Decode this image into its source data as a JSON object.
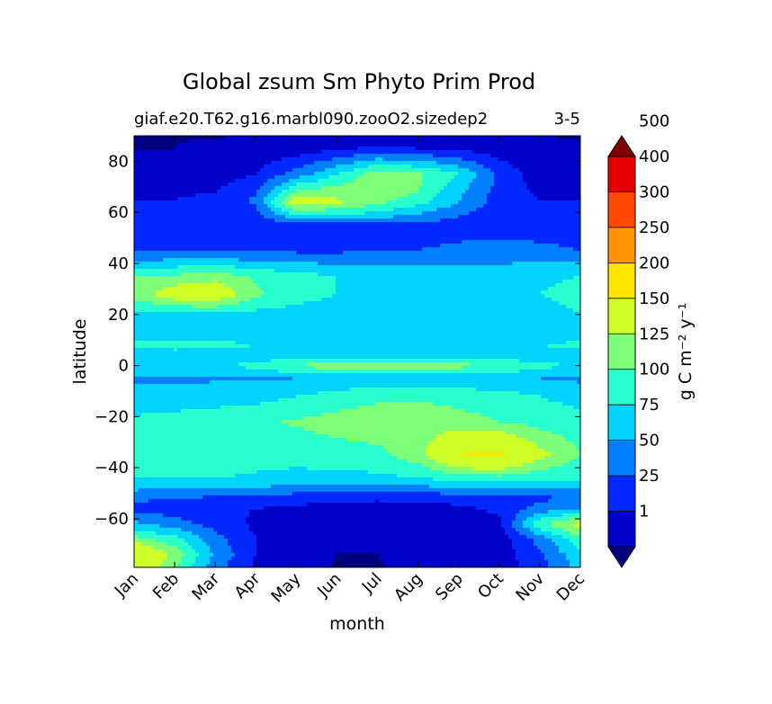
{
  "chart_data": {
    "type": "filled-contour",
    "title": "Global zsum Sm Phyto Prim Prod",
    "subtitle_left": "giaf.e20.T62.g16.marbl090.zooO2.sizedep2",
    "subtitle_right": "3-5",
    "xlabel": "month",
    "ylabel": "latitude",
    "x_categories": [
      "Jan",
      "Feb",
      "Mar",
      "Apr",
      "May",
      "Jun",
      "Jul",
      "Aug",
      "Sep",
      "Oct",
      "Nov",
      "Dec"
    ],
    "ylim": [
      -79,
      90
    ],
    "y_ticks": [
      -60,
      -40,
      -20,
      0,
      20,
      40,
      60,
      80
    ],
    "y_tick_labels": [
      "−60",
      "−40",
      "−20",
      "0",
      "20",
      "40",
      "60",
      "80"
    ],
    "colorbar": {
      "label": "g C m⁻² y⁻¹",
      "extend": "both",
      "levels": [
        1,
        25,
        50,
        75,
        100,
        125,
        150,
        200,
        250,
        300,
        400,
        500
      ],
      "level_labels": [
        "1",
        "25",
        "50",
        "75",
        "100",
        "125",
        "150",
        "200",
        "250",
        "300",
        "400",
        "500"
      ],
      "colors": [
        "#000080",
        "#0000c8",
        "#0028ff",
        "#0080ff",
        "#00d4ff",
        "#29ffce",
        "#7dff7a",
        "#ceff29",
        "#ffe600",
        "#ff9400",
        "#ff4800",
        "#e50000",
        "#800000"
      ]
    },
    "field": {
      "months": [
        1,
        2,
        3,
        4,
        5,
        6,
        7,
        8,
        9,
        10,
        11,
        12
      ],
      "lat_profile_by_month": [
        [
          [
            90,
            0
          ],
          [
            85,
            1
          ],
          [
            75,
            10
          ],
          [
            65,
            25
          ],
          [
            55,
            30
          ],
          [
            45,
            45
          ],
          [
            35,
            125
          ],
          [
            28,
            135
          ],
          [
            20,
            92
          ],
          [
            12,
            82
          ],
          [
            8,
            110
          ],
          [
            4,
            80
          ],
          [
            0,
            90
          ],
          [
            -5,
            70
          ],
          [
            -12,
            85
          ],
          [
            -22,
            105
          ],
          [
            -35,
            115
          ],
          [
            -45,
            98
          ],
          [
            -52,
            55
          ],
          [
            -56,
            40
          ],
          [
            -62,
            80
          ],
          [
            -68,
            135
          ],
          [
            -74,
            200
          ],
          [
            -79,
            180
          ]
        ],
        [
          [
            90,
            0
          ],
          [
            85,
            1
          ],
          [
            75,
            10
          ],
          [
            65,
            25
          ],
          [
            55,
            30
          ],
          [
            45,
            45
          ],
          [
            35,
            130
          ],
          [
            28,
            170
          ],
          [
            20,
            95
          ],
          [
            12,
            85
          ],
          [
            8,
            115
          ],
          [
            4,
            82
          ],
          [
            0,
            90
          ],
          [
            -5,
            70
          ],
          [
            -12,
            85
          ],
          [
            -22,
            110
          ],
          [
            -35,
            118
          ],
          [
            -45,
            98
          ],
          [
            -52,
            50
          ],
          [
            -56,
            38
          ],
          [
            -62,
            60
          ],
          [
            -68,
            110
          ],
          [
            -74,
            140
          ],
          [
            -79,
            130
          ]
        ],
        [
          [
            90,
            0
          ],
          [
            85,
            5
          ],
          [
            75,
            14
          ],
          [
            65,
            30
          ],
          [
            55,
            32
          ],
          [
            45,
            45
          ],
          [
            35,
            140
          ],
          [
            28,
            175
          ],
          [
            20,
            95
          ],
          [
            12,
            85
          ],
          [
            8,
            110
          ],
          [
            4,
            82
          ],
          [
            0,
            95
          ],
          [
            -5,
            72
          ],
          [
            -12,
            88
          ],
          [
            -22,
            115
          ],
          [
            -35,
            118
          ],
          [
            -45,
            98
          ],
          [
            -52,
            45
          ],
          [
            -56,
            30
          ],
          [
            -62,
            40
          ],
          [
            -68,
            60
          ],
          [
            -74,
            70
          ],
          [
            -79,
            60
          ]
        ],
        [
          [
            90,
            1
          ],
          [
            85,
            10
          ],
          [
            75,
            25
          ],
          [
            65,
            55
          ],
          [
            55,
            35
          ],
          [
            45,
            45
          ],
          [
            35,
            120
          ],
          [
            28,
            130
          ],
          [
            20,
            92
          ],
          [
            12,
            85
          ],
          [
            8,
            100
          ],
          [
            4,
            82
          ],
          [
            0,
            110
          ],
          [
            -5,
            72
          ],
          [
            -12,
            90
          ],
          [
            -22,
            120
          ],
          [
            -35,
            110
          ],
          [
            -45,
            95
          ],
          [
            -52,
            40
          ],
          [
            -56,
            25
          ],
          [
            -62,
            20
          ],
          [
            -68,
            25
          ],
          [
            -74,
            25
          ],
          [
            -79,
            20
          ]
        ],
        [
          [
            90,
            1
          ],
          [
            85,
            10
          ],
          [
            75,
            60
          ],
          [
            68,
            130
          ],
          [
            64,
            170
          ],
          [
            60,
            115
          ],
          [
            55,
            35
          ],
          [
            45,
            45
          ],
          [
            35,
            110
          ],
          [
            28,
            110
          ],
          [
            20,
            90
          ],
          [
            12,
            85
          ],
          [
            8,
            95
          ],
          [
            4,
            82
          ],
          [
            0,
            130
          ],
          [
            -5,
            75
          ],
          [
            -12,
            100
          ],
          [
            -22,
            128
          ],
          [
            -35,
            110
          ],
          [
            -45,
            90
          ],
          [
            -52,
            35
          ],
          [
            -56,
            20
          ],
          [
            -62,
            15
          ],
          [
            -68,
            12
          ],
          [
            -74,
            8
          ],
          [
            -79,
            5
          ]
        ],
        [
          [
            90,
            1
          ],
          [
            85,
            20
          ],
          [
            75,
            100
          ],
          [
            68,
            140
          ],
          [
            64,
            155
          ],
          [
            60,
            110
          ],
          [
            55,
            35
          ],
          [
            45,
            45
          ],
          [
            35,
            100
          ],
          [
            28,
            100
          ],
          [
            20,
            88
          ],
          [
            12,
            85
          ],
          [
            8,
            92
          ],
          [
            4,
            82
          ],
          [
            0,
            140
          ],
          [
            -5,
            78
          ],
          [
            -12,
            110
          ],
          [
            -22,
            135
          ],
          [
            -35,
            115
          ],
          [
            -45,
            90
          ],
          [
            -52,
            30
          ],
          [
            -56,
            15
          ],
          [
            -62,
            8
          ],
          [
            -68,
            5
          ],
          [
            -74,
            1
          ],
          [
            -79,
            0
          ]
        ],
        [
          [
            90,
            1
          ],
          [
            85,
            30
          ],
          [
            75,
            140
          ],
          [
            68,
            145
          ],
          [
            64,
            130
          ],
          [
            60,
            100
          ],
          [
            55,
            40
          ],
          [
            45,
            50
          ],
          [
            35,
            95
          ],
          [
            28,
            95
          ],
          [
            20,
            88
          ],
          [
            12,
            85
          ],
          [
            8,
            92
          ],
          [
            4,
            82
          ],
          [
            0,
            145
          ],
          [
            -5,
            80
          ],
          [
            -12,
            120
          ],
          [
            -22,
            140
          ],
          [
            -35,
            118
          ],
          [
            -45,
            92
          ],
          [
            -52,
            28
          ],
          [
            -56,
            15
          ],
          [
            -62,
            8
          ],
          [
            -68,
            5
          ],
          [
            -74,
            1
          ],
          [
            -79,
            0
          ]
        ],
        [
          [
            90,
            1
          ],
          [
            85,
            25
          ],
          [
            75,
            130
          ],
          [
            68,
            125
          ],
          [
            64,
            110
          ],
          [
            60,
            80
          ],
          [
            55,
            40
          ],
          [
            45,
            50
          ],
          [
            35,
            90
          ],
          [
            28,
            90
          ],
          [
            20,
            88
          ],
          [
            12,
            85
          ],
          [
            8,
            92
          ],
          [
            4,
            82
          ],
          [
            0,
            140
          ],
          [
            -5,
            80
          ],
          [
            -12,
            122
          ],
          [
            -22,
            140
          ],
          [
            -35,
            140
          ],
          [
            -45,
            95
          ],
          [
            -52,
            30
          ],
          [
            -56,
            15
          ],
          [
            -62,
            10
          ],
          [
            -68,
            8
          ],
          [
            -74,
            5
          ],
          [
            -79,
            5
          ]
        ],
        [
          [
            90,
            1
          ],
          [
            85,
            20
          ],
          [
            75,
            100
          ],
          [
            68,
            80
          ],
          [
            64,
            75
          ],
          [
            60,
            55
          ],
          [
            55,
            40
          ],
          [
            45,
            55
          ],
          [
            35,
            88
          ],
          [
            28,
            88
          ],
          [
            20,
            88
          ],
          [
            12,
            85
          ],
          [
            8,
            92
          ],
          [
            4,
            82
          ],
          [
            0,
            135
          ],
          [
            -5,
            80
          ],
          [
            -12,
            115
          ],
          [
            -22,
            135
          ],
          [
            -35,
            200
          ],
          [
            -45,
            100
          ],
          [
            -52,
            35
          ],
          [
            -56,
            20
          ],
          [
            -62,
            12
          ],
          [
            -68,
            8
          ],
          [
            -74,
            8
          ],
          [
            -79,
            8
          ]
        ],
        [
          [
            90,
            1
          ],
          [
            85,
            10
          ],
          [
            75,
            45
          ],
          [
            68,
            40
          ],
          [
            64,
            38
          ],
          [
            60,
            35
          ],
          [
            55,
            38
          ],
          [
            45,
            60
          ],
          [
            35,
            88
          ],
          [
            28,
            90
          ],
          [
            20,
            88
          ],
          [
            12,
            85
          ],
          [
            8,
            92
          ],
          [
            4,
            82
          ],
          [
            0,
            125
          ],
          [
            -5,
            80
          ],
          [
            -12,
            110
          ],
          [
            -22,
            125
          ],
          [
            -35,
            210
          ],
          [
            -45,
            105
          ],
          [
            -52,
            40
          ],
          [
            -56,
            30
          ],
          [
            -62,
            18
          ],
          [
            -68,
            10
          ],
          [
            -74,
            10
          ],
          [
            -79,
            10
          ]
        ],
        [
          [
            90,
            1
          ],
          [
            85,
            4
          ],
          [
            75,
            10
          ],
          [
            65,
            25
          ],
          [
            55,
            30
          ],
          [
            45,
            60
          ],
          [
            35,
            95
          ],
          [
            28,
            100
          ],
          [
            20,
            90
          ],
          [
            12,
            82
          ],
          [
            8,
            100
          ],
          [
            4,
            82
          ],
          [
            0,
            110
          ],
          [
            -5,
            75
          ],
          [
            -12,
            100
          ],
          [
            -22,
            115
          ],
          [
            -35,
            160
          ],
          [
            -45,
            100
          ],
          [
            -52,
            45
          ],
          [
            -56,
            60
          ],
          [
            -62,
            120
          ],
          [
            -68,
            60
          ],
          [
            -74,
            45
          ],
          [
            -79,
            40
          ]
        ],
        [
          [
            90,
            0
          ],
          [
            85,
            2
          ],
          [
            75,
            8
          ],
          [
            65,
            25
          ],
          [
            55,
            30
          ],
          [
            45,
            50
          ],
          [
            35,
            100
          ],
          [
            28,
            110
          ],
          [
            20,
            100
          ],
          [
            12,
            82
          ],
          [
            8,
            110
          ],
          [
            4,
            80
          ],
          [
            0,
            95
          ],
          [
            -5,
            70
          ],
          [
            -12,
            90
          ],
          [
            -22,
            110
          ],
          [
            -35,
            125
          ],
          [
            -45,
            100
          ],
          [
            -52,
            50
          ],
          [
            -56,
            70
          ],
          [
            -62,
            165
          ],
          [
            -68,
            120
          ],
          [
            -74,
            95
          ],
          [
            -79,
            85
          ]
        ]
      ]
    }
  }
}
